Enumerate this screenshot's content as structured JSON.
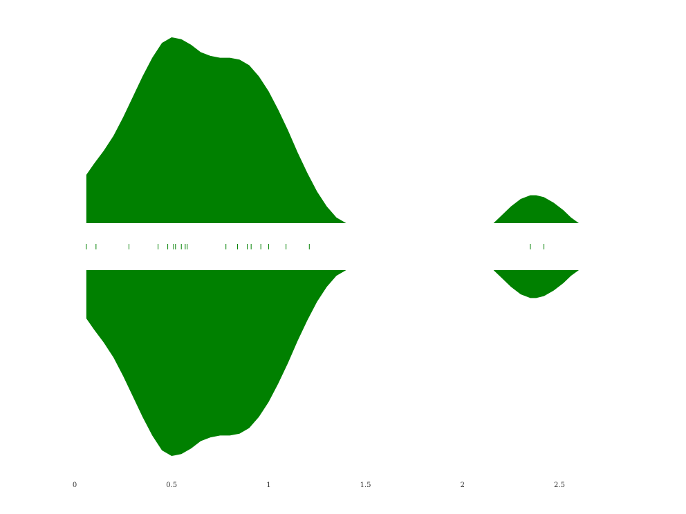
{
  "chart_data": {
    "type": "violin",
    "title": "",
    "xlabel": "",
    "ylabel": "",
    "xlim": [
      0,
      3.0
    ],
    "xticks": [
      "0",
      "0.5",
      "1",
      "1.5",
      "2",
      "2.5"
    ],
    "xtick_values": [
      0,
      0.5,
      1,
      1.5,
      2,
      2.5
    ],
    "grid": false,
    "legend": "none",
    "series": [
      {
        "color": "#008000",
        "rug": [
          0.06,
          0.11,
          0.28,
          0.43,
          0.48,
          0.51,
          0.52,
          0.55,
          0.57,
          0.58,
          0.78,
          0.84,
          0.89,
          0.91,
          0.96,
          1.0,
          1.09,
          1.21,
          2.35,
          2.42
        ],
        "density_upper": {
          "x": [
            0.06,
            0.1,
            0.15,
            0.2,
            0.25,
            0.3,
            0.35,
            0.4,
            0.45,
            0.5,
            0.55,
            0.6,
            0.65,
            0.7,
            0.75,
            0.8,
            0.85,
            0.9,
            0.95,
            1.0,
            1.05,
            1.1,
            1.15,
            1.2,
            1.25,
            1.3,
            1.35,
            1.4
          ],
          "y": [
            0.26,
            0.32,
            0.39,
            0.47,
            0.57,
            0.68,
            0.79,
            0.89,
            0.97,
            1.0,
            0.99,
            0.96,
            0.92,
            0.9,
            0.89,
            0.89,
            0.88,
            0.85,
            0.79,
            0.71,
            0.61,
            0.5,
            0.38,
            0.27,
            0.17,
            0.09,
            0.03,
            0.0
          ]
        },
        "density_lower": {
          "x": [
            0.06,
            0.1,
            0.15,
            0.2,
            0.25,
            0.3,
            0.35,
            0.4,
            0.45,
            0.5,
            0.55,
            0.6,
            0.65,
            0.7,
            0.75,
            0.8,
            0.85,
            0.9,
            0.95,
            1.0,
            1.05,
            1.1,
            1.15,
            1.2,
            1.25,
            1.3,
            1.35,
            1.4
          ],
          "y": [
            0.26,
            0.32,
            0.39,
            0.47,
            0.57,
            0.68,
            0.79,
            0.89,
            0.97,
            1.0,
            0.99,
            0.96,
            0.92,
            0.9,
            0.89,
            0.89,
            0.88,
            0.85,
            0.79,
            0.71,
            0.61,
            0.5,
            0.38,
            0.27,
            0.17,
            0.09,
            0.03,
            0.0
          ]
        },
        "density_small": {
          "x": [
            2.16,
            2.2,
            2.25,
            2.3,
            2.35,
            2.38,
            2.42,
            2.47,
            2.52,
            2.56,
            2.6
          ],
          "y": [
            0.0,
            0.04,
            0.09,
            0.13,
            0.15,
            0.15,
            0.14,
            0.11,
            0.07,
            0.03,
            0.0
          ]
        }
      }
    ]
  }
}
